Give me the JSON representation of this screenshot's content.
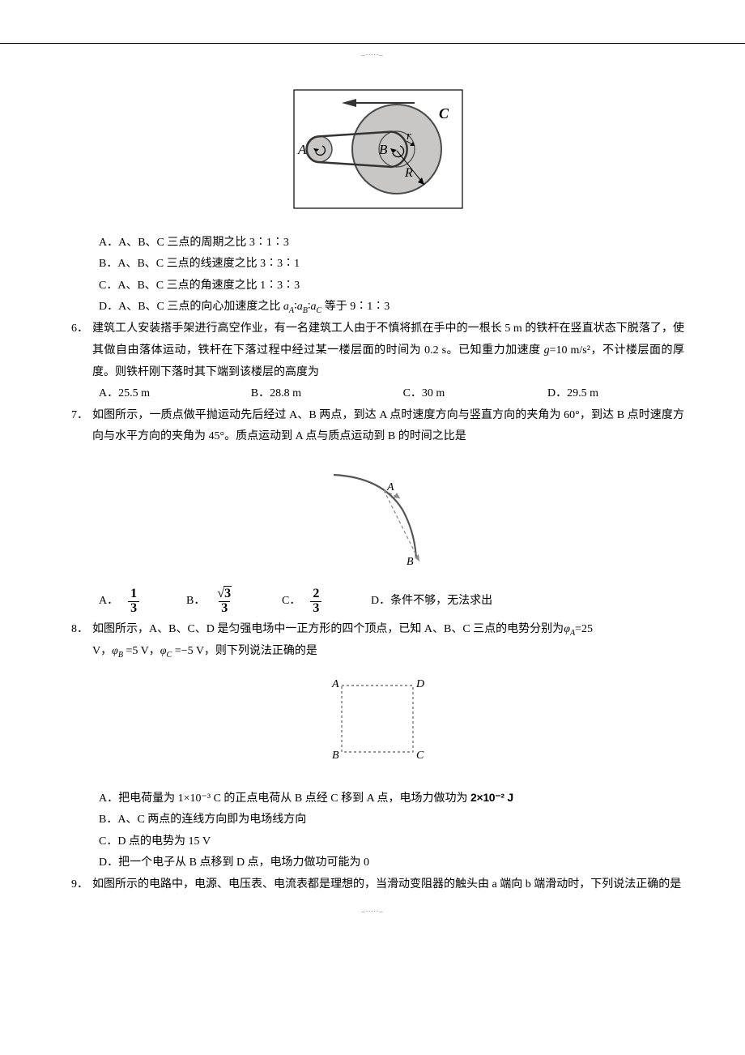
{
  "watermark": "_....._",
  "figure_pulley": {
    "labels": {
      "A": "A",
      "B": "B",
      "C": "C",
      "r": "r",
      "R": "R"
    },
    "colors": {
      "wheel_fill": "#c8c7c6",
      "wheel_stroke": "#555",
      "belt": "#333",
      "text": "#000",
      "box_stroke": "#000"
    }
  },
  "opts5": {
    "A": "A．A、B、C 三点的周期之比 3∶1∶3",
    "B": "B．A、B、C 三点的线速度之比 3∶3∶1",
    "C": "C．A、B、C 三点的角速度之比 1∶3∶3",
    "D_pre": "D．A、B、C 三点的向心加速度之比 ",
    "D_ratio_a": "a",
    "D_ratio_sA": "A",
    "D_ratio_sB": "B",
    "D_ratio_sC": "C",
    "D_post": " 等于 9∶1∶3"
  },
  "q6": {
    "num": "6．",
    "body1": "建筑工人安装搭手架进行高空作业，有一名建筑工人由于不慎将抓在手中的一根长 5 m 的铁杆在竖直状态下脱落了，使其做自由落体运动，铁杆在下落过程中经过某一楼层面的时间为 0.2 s。已知重力加速度 ",
    "body_g": "g",
    "body2": "=10 m/s²，不计楼层面的厚度。则铁杆刚下落时其下端到该楼层的高度为",
    "A": "A．25.5 m",
    "B": "B．28.8 m",
    "C": "C．30 m",
    "D": "D．29.5 m"
  },
  "q7": {
    "num": "7．",
    "body1": "如图所示，一质点做平抛运动先后经过 A、B 两点，到达 A 点时速度方向与竖直方向的夹角为 60°，到达 B 点时速度方向与水平方向的夹角为 45°。质点运动到 A 点与质点运动到 B 的时间之比是",
    "fig_labels": {
      "A": "A",
      "B": "B"
    },
    "A_lab": "A．",
    "A_num": "1",
    "A_den": "3",
    "B_lab": "B．",
    "B_num": "√3",
    "B_den": "3",
    "C_lab": "C．",
    "C_num": "2",
    "C_den": "3",
    "D_lab": "D．条件不够，无法求出"
  },
  "q8": {
    "num": "8．",
    "body1": "如图所示，A、B、C、D 是匀强电场中一正方形的四个顶点，已知 A、B、C 三点的电势分别为",
    "phiA_pre": "φ",
    "phiA_sub": "A",
    "phiA_post": "=25",
    "line2_pre": "V，",
    "phiB_pre": "φ",
    "phiB_sub": "B",
    "phiB_post": " =5 V，",
    "phiC_pre": "φ",
    "phiC_sub": "C",
    "phiC_post": " =−5 V，则下列说法正确的是",
    "sq_labels": {
      "A": "A",
      "B": "B",
      "C": "C",
      "D": "D"
    },
    "optA_pre": "A．把电荷量为 1×10⁻³ C 的正点电荷从 B 点经 C 移到 A 点，电场力做功为 ",
    "optA_val": "2×10⁻² J",
    "optB": "B．A、C 两点的连线方向即为电场线方向",
    "optC": "C．D 点的电势为 15 V",
    "optD": "D．把一个电子从 B 点移到 D 点，电场力做功可能为 0"
  },
  "q9": {
    "num": "9．",
    "body": "如图所示的电路中，电源、电压表、电流表都是理想的，当滑动变阻器的触头由 a 端向 b 端滑动时，下列说法正确的是"
  }
}
